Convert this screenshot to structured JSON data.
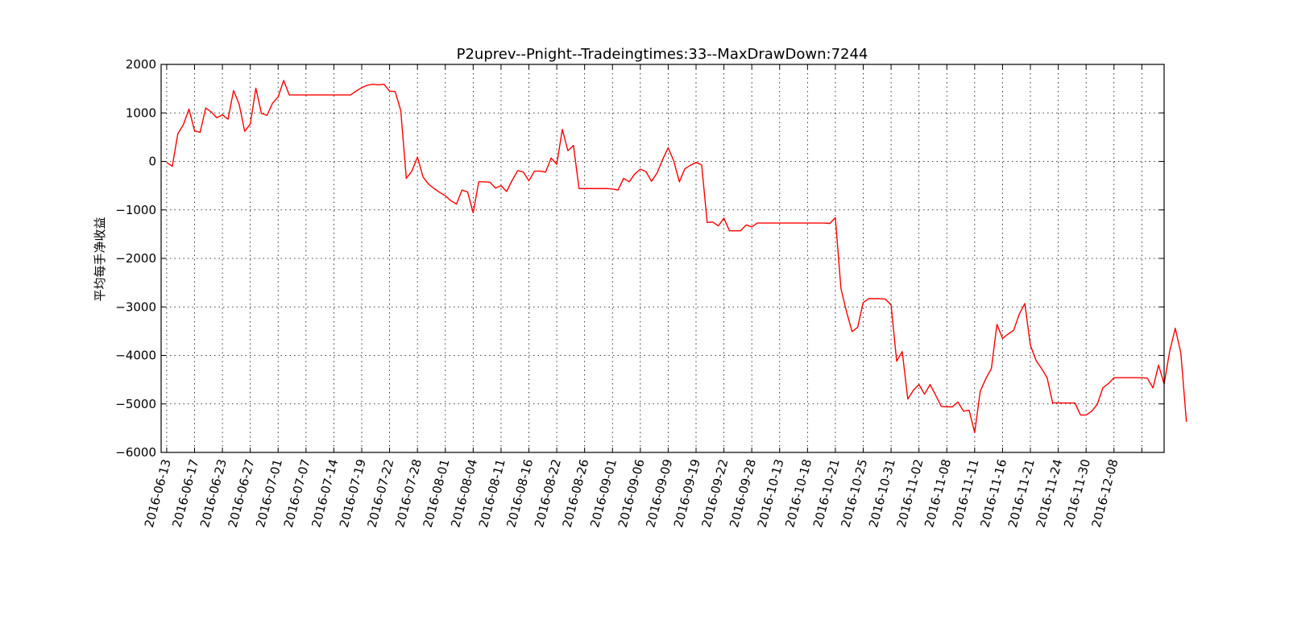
{
  "chart_data": {
    "type": "line",
    "title": "P2uprev--Pnight--Tradeingtimes:33--MaxDrawDown:7244",
    "xlabel": "",
    "ylabel": "平均每手净收益",
    "ylim": [
      -6000,
      2000
    ],
    "yticks": [
      2000,
      1000,
      0,
      -1000,
      -2000,
      -3000,
      -4000,
      -5000,
      -6000
    ],
    "ytick_labels": [
      "2000",
      "1000",
      "0",
      "−1000",
      "−2000",
      "−3000",
      "−4000",
      "−5000",
      "−6000"
    ],
    "xlim": [
      -1,
      179
    ],
    "xtick_positions": [
      0,
      5,
      10,
      15,
      20,
      25,
      30,
      35,
      40,
      45,
      50,
      55,
      60,
      65,
      70,
      75,
      80,
      85,
      90,
      95,
      100,
      105,
      110,
      115,
      120,
      125,
      130,
      135,
      140,
      145,
      150,
      155,
      160,
      165,
      170,
      175
    ],
    "xtick_labels": [
      "2016-06-13",
      "2016-06-17",
      "2016-06-23",
      "2016-06-27",
      "2016-07-01",
      "2016-07-07",
      "2016-07-14",
      "2016-07-19",
      "2016-07-22",
      "2016-07-28",
      "2016-08-01",
      "2016-08-04",
      "2016-08-11",
      "2016-08-16",
      "2016-08-22",
      "2016-08-26",
      "2016-09-01",
      "2016-09-06",
      "2016-09-09",
      "2016-09-19",
      "2016-09-22",
      "2016-09-28",
      "2016-10-13",
      "2016-10-18",
      "2016-10-21",
      "2016-10-25",
      "2016-10-31",
      "2016-11-02",
      "2016-11-08",
      "2016-11-11",
      "2016-11-16",
      "2016-11-21",
      "2016-11-24",
      "2016-11-30",
      "2016-12-08",
      ""
    ],
    "grid": true,
    "line_color": "#ff0000",
    "series": [
      {
        "name": "",
        "values": [
          -20,
          -100,
          570,
          760,
          1080,
          630,
          600,
          1100,
          1020,
          900,
          960,
          870,
          1460,
          1180,
          620,
          770,
          1510,
          990,
          950,
          1200,
          1330,
          1670,
          1370,
          1370,
          1370,
          1370,
          1370,
          1370,
          1370,
          1370,
          1370,
          1370,
          1370,
          1370,
          1450,
          1520,
          1570,
          1590,
          1580,
          1590,
          1450,
          1440,
          1050,
          -350,
          -200,
          90,
          -320,
          -470,
          -560,
          -640,
          -710,
          -810,
          -880,
          -590,
          -630,
          -1060,
          -420,
          -420,
          -430,
          -550,
          -500,
          -620,
          -390,
          -190,
          -220,
          -400,
          -200,
          -200,
          -220,
          70,
          -60,
          660,
          220,
          330,
          -560,
          -560,
          -560,
          -560,
          -560,
          -560,
          -570,
          -590,
          -350,
          -420,
          -260,
          -160,
          -210,
          -410,
          -240,
          40,
          280,
          10,
          -420,
          -150,
          -80,
          -20,
          -70,
          -1260,
          -1250,
          -1330,
          -1170,
          -1430,
          -1430,
          -1430,
          -1310,
          -1350,
          -1270,
          -1270,
          -1270,
          -1270,
          -1270,
          -1270,
          -1270,
          -1270,
          -1270,
          -1270,
          -1270,
          -1270,
          -1270,
          -1280,
          -1160,
          -2620,
          -3100,
          -3510,
          -3420,
          -2910,
          -2830,
          -2830,
          -2830,
          -2840,
          -2960,
          -4120,
          -3920,
          -4900,
          -4720,
          -4600,
          -4800,
          -4600,
          -4820,
          -5050,
          -5060,
          -5060,
          -4960,
          -5150,
          -5130,
          -5590,
          -4740,
          -4480,
          -4270,
          -3360,
          -3650,
          -3560,
          -3480,
          -3150,
          -2930,
          -3790,
          -4100,
          -4270,
          -4460,
          -4980,
          -4980,
          -4980,
          -4980,
          -4980,
          -5230,
          -5230,
          -5150,
          -5010,
          -4670,
          -4580,
          -4460,
          -4460,
          -4460,
          -4460,
          -4460,
          -4460,
          -4470,
          -4670,
          -4200,
          -4590,
          -3910,
          -3440,
          -3950,
          -5370
        ]
      }
    ]
  }
}
